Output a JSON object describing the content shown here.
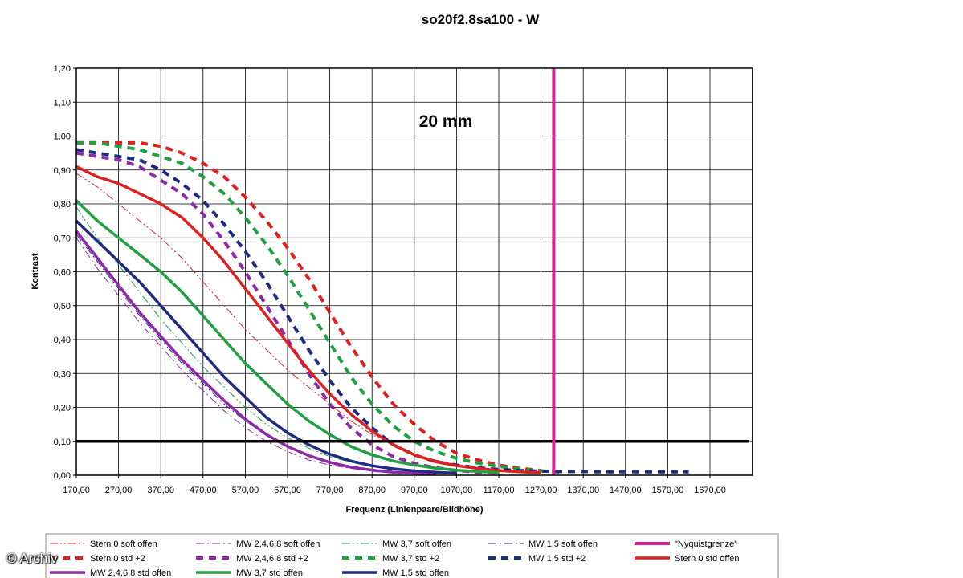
{
  "watermark": "© Archiv",
  "chart_data": {
    "type": "line",
    "title": "so20f2.8sa100 - W",
    "annotation": "20 mm",
    "xlabel": "Frequenz (Linienpaare/Bildhöhe)",
    "ylabel": "Kontrast",
    "xlim": [
      170,
      1720
    ],
    "ylim": [
      0,
      1.2
    ],
    "grid": true,
    "legend_position": "bottom",
    "x_ticks": [
      "170,00",
      "270,00",
      "370,00",
      "470,00",
      "570,00",
      "670,00",
      "770,00",
      "870,00",
      "970,00",
      "1070,00",
      "1170,00",
      "1270,00",
      "1370,00",
      "1470,00",
      "1570,00",
      "1670,00"
    ],
    "y_ticks": [
      "0,00",
      "0,10",
      "0,20",
      "0,30",
      "0,40",
      "0,50",
      "0,60",
      "0,70",
      "0,80",
      "0,90",
      "1,00",
      "1,10",
      "1,20"
    ],
    "reference_line": {
      "y": 0.1,
      "color": "#000000"
    },
    "nyquist": {
      "name": "\"Nyquistgrenze\"",
      "x": 1300,
      "color": "#e0209a"
    },
    "x": [
      170,
      220,
      270,
      320,
      370,
      420,
      470,
      520,
      570,
      620,
      670,
      720,
      770,
      820,
      870,
      920,
      970,
      1020,
      1070,
      1120,
      1170,
      1220,
      1270,
      1320,
      1370,
      1420,
      1470,
      1520,
      1570,
      1620
    ],
    "series": [
      {
        "name": "Stern 0 soft offen",
        "style": "dashdotdot",
        "width": 1,
        "color": "#e02020",
        "values": [
          0.89,
          0.85,
          0.8,
          0.75,
          0.7,
          0.64,
          0.57,
          0.5,
          0.43,
          0.37,
          0.31,
          0.26,
          0.21,
          0.16,
          0.12,
          0.09,
          0.06,
          0.045,
          0.032,
          0.023,
          0.016,
          0.011,
          0.008,
          null,
          null,
          null,
          null,
          null,
          null,
          null
        ]
      },
      {
        "name": "MW 2,4,6,8 soft offen",
        "style": "dashdot",
        "width": 1,
        "color": "#8e2aa8",
        "values": [
          0.7,
          0.61,
          0.53,
          0.45,
          0.38,
          0.31,
          0.25,
          0.19,
          0.14,
          0.1,
          0.07,
          0.045,
          0.03,
          0.02,
          0.013,
          0.008,
          0.005,
          0.003,
          null,
          null,
          null,
          null,
          null,
          null,
          null,
          null,
          null,
          null,
          null,
          null
        ]
      },
      {
        "name": "MW 3,7 soft offen",
        "style": "dashdotdot",
        "width": 1,
        "color": "#20a040",
        "values": [
          0.79,
          0.7,
          0.62,
          0.54,
          0.46,
          0.39,
          0.32,
          0.26,
          0.2,
          0.15,
          0.11,
          0.08,
          0.055,
          0.038,
          0.026,
          0.017,
          0.011,
          0.007,
          0.004,
          null,
          null,
          null,
          null,
          null,
          null,
          null,
          null,
          null,
          null,
          null
        ]
      },
      {
        "name": "MW 1,5 soft offen",
        "style": "dashdot",
        "width": 1,
        "color": "#202a80",
        "values": [
          0.71,
          0.63,
          0.55,
          0.47,
          0.4,
          0.33,
          0.27,
          0.21,
          0.16,
          0.12,
          0.085,
          0.06,
          0.04,
          0.027,
          0.018,
          0.012,
          0.008,
          0.005,
          null,
          null,
          null,
          null,
          null,
          null,
          null,
          null,
          null,
          null,
          null,
          null
        ]
      },
      {
        "name": "Stern 0 std +2",
        "style": "dash",
        "width": 4,
        "color": "#e02020",
        "values": [
          0.98,
          0.98,
          0.98,
          0.98,
          0.97,
          0.95,
          0.92,
          0.88,
          0.82,
          0.75,
          0.67,
          0.58,
          0.48,
          0.38,
          0.29,
          0.21,
          0.15,
          0.1,
          0.065,
          0.045,
          0.03,
          0.02,
          0.014,
          null,
          null,
          null,
          null,
          null,
          null,
          null
        ]
      },
      {
        "name": "MW 2,4,6,8 std +2",
        "style": "dash",
        "width": 4,
        "color": "#8e2aa8",
        "values": [
          0.95,
          0.94,
          0.93,
          0.91,
          0.87,
          0.83,
          0.77,
          0.69,
          0.6,
          0.5,
          0.4,
          0.3,
          0.21,
          0.14,
          0.09,
          0.055,
          0.035,
          0.022,
          0.014,
          0.009,
          0.006,
          null,
          null,
          null,
          null,
          null,
          null,
          null,
          null,
          null
        ]
      },
      {
        "name": "MW 3,7 std +2",
        "style": "dash",
        "width": 4,
        "color": "#20a040",
        "values": [
          0.98,
          0.98,
          0.97,
          0.96,
          0.94,
          0.92,
          0.88,
          0.83,
          0.76,
          0.68,
          0.59,
          0.49,
          0.39,
          0.29,
          0.21,
          0.145,
          0.1,
          0.07,
          0.05,
          0.036,
          0.026,
          0.018,
          0.013,
          0.009,
          null,
          null,
          null,
          null,
          null,
          null
        ]
      },
      {
        "name": "MW 1,5 std +2",
        "style": "dash",
        "width": 4,
        "color": "#202a80",
        "values": [
          0.96,
          0.95,
          0.94,
          0.93,
          0.9,
          0.86,
          0.81,
          0.74,
          0.66,
          0.57,
          0.47,
          0.37,
          0.28,
          0.2,
          0.14,
          0.09,
          0.06,
          0.04,
          0.03,
          0.022,
          0.017,
          0.014,
          0.012,
          0.011,
          0.011,
          0.01,
          0.01,
          0.01,
          0.01,
          0.01
        ]
      },
      {
        "name": "Stern 0 std offen",
        "style": "solid",
        "width": 3.5,
        "color": "#e02020",
        "values": [
          0.91,
          0.88,
          0.86,
          0.83,
          0.8,
          0.76,
          0.7,
          0.63,
          0.55,
          0.47,
          0.39,
          0.31,
          0.24,
          0.18,
          0.13,
          0.09,
          0.06,
          0.04,
          0.028,
          0.02,
          0.014,
          0.01,
          0.007,
          null,
          null,
          null,
          null,
          null,
          null,
          null
        ]
      },
      {
        "name": "MW 2,4,6,8 std offen",
        "style": "solid",
        "width": 3.5,
        "color": "#8e2aa8",
        "values": [
          0.72,
          0.64,
          0.56,
          0.48,
          0.41,
          0.34,
          0.28,
          0.22,
          0.165,
          0.12,
          0.085,
          0.058,
          0.038,
          0.024,
          0.015,
          0.009,
          0.006,
          0.004,
          null,
          null,
          null,
          null,
          null,
          null,
          null,
          null,
          null,
          null,
          null,
          null
        ]
      },
      {
        "name": "MW 3,7 std offen",
        "style": "solid",
        "width": 3.5,
        "color": "#20a040",
        "values": [
          0.81,
          0.75,
          0.7,
          0.65,
          0.6,
          0.54,
          0.47,
          0.4,
          0.33,
          0.27,
          0.21,
          0.16,
          0.12,
          0.085,
          0.06,
          0.042,
          0.03,
          0.021,
          0.015,
          0.011,
          0.008,
          null,
          null,
          null,
          null,
          null,
          null,
          null,
          null,
          null
        ]
      },
      {
        "name": "MW 1,5 std offen",
        "style": "solid",
        "width": 3.5,
        "color": "#202a80",
        "values": [
          0.75,
          0.69,
          0.63,
          0.57,
          0.5,
          0.43,
          0.36,
          0.29,
          0.23,
          0.17,
          0.125,
          0.09,
          0.062,
          0.042,
          0.028,
          0.019,
          0.013,
          0.009,
          0.006,
          null,
          null,
          null,
          null,
          null,
          null,
          null,
          null,
          null,
          null,
          null
        ]
      }
    ]
  }
}
